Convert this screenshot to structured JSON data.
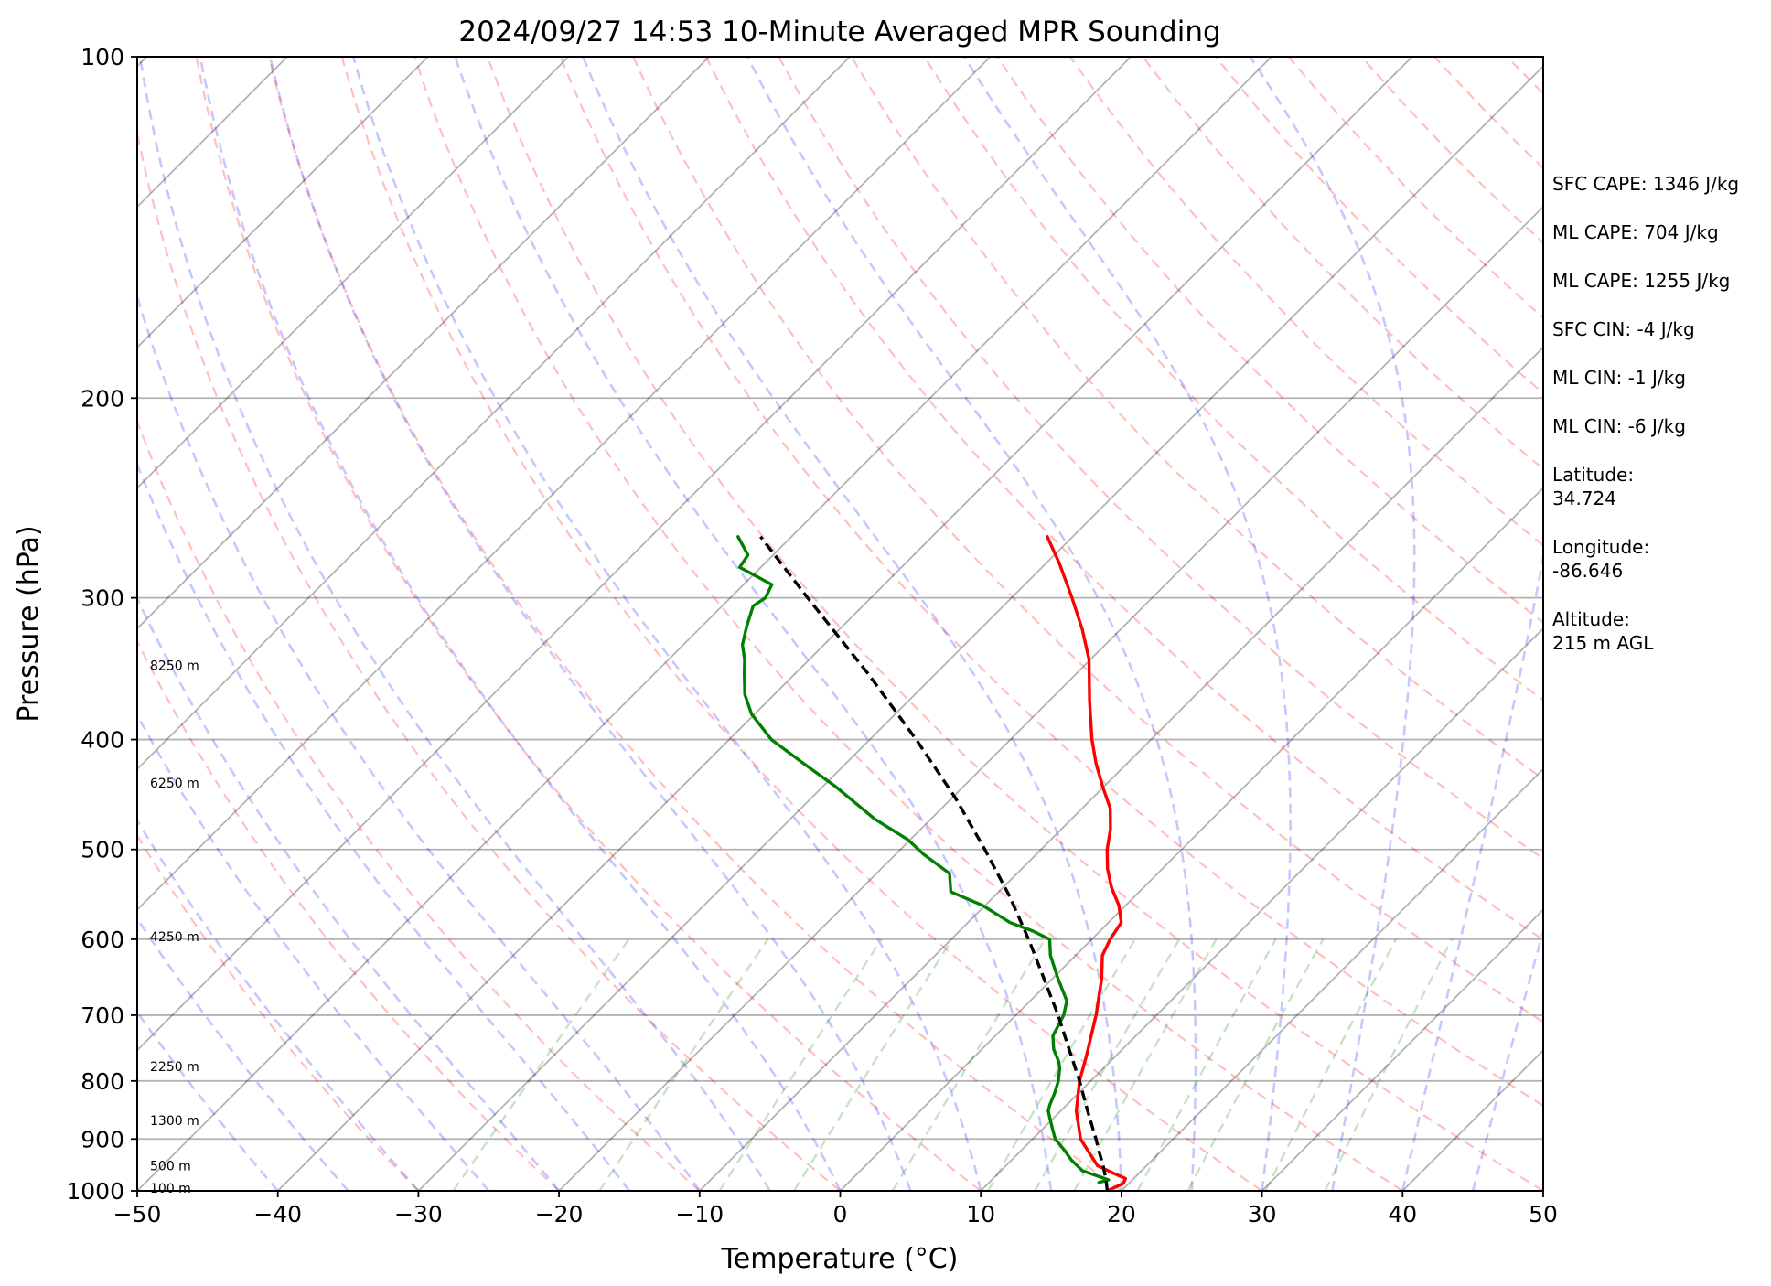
{
  "chart_data": {
    "type": "line",
    "title": "2024/09/27 14:53 10-Minute Averaged MPR Sounding",
    "xlabel": "Temperature (°C)",
    "ylabel": "Pressure (hPa)",
    "xlim": [
      -50,
      50
    ],
    "ylim": [
      1000,
      100
    ],
    "y_scale": "log",
    "skew": true,
    "x_ticks": [
      -50,
      -40,
      -30,
      -20,
      -10,
      0,
      10,
      20,
      30,
      40,
      50
    ],
    "x_tick_labels": [
      "−50",
      "−40",
      "−30",
      "−20",
      "−10",
      "0",
      "10",
      "20",
      "30",
      "40",
      "50"
    ],
    "p_ticks": [
      1000,
      900,
      800,
      700,
      600,
      500,
      400,
      300,
      200,
      100
    ],
    "p_tick_labels": [
      "1000",
      "900",
      "800",
      "700",
      "600",
      "500",
      "400",
      "300",
      "200",
      "100"
    ],
    "height_labels": [
      {
        "p": 344,
        "text": "8250 m"
      },
      {
        "p": 437,
        "text": "6250 m"
      },
      {
        "p": 597,
        "text": "4250 m"
      },
      {
        "p": 777,
        "text": "2250 m"
      },
      {
        "p": 867,
        "text": "1300 m"
      },
      {
        "p": 950,
        "text": "500 m"
      },
      {
        "p": 994,
        "text": "100 m"
      }
    ],
    "series": [
      {
        "color": "#ff0000",
        "style": "solid",
        "points": [
          [
            1000,
            19.0
          ],
          [
            985,
            19.6
          ],
          [
            975,
            19.4
          ],
          [
            965,
            18.2
          ],
          [
            950,
            16.5
          ],
          [
            900,
            13.4
          ],
          [
            850,
            11.1
          ],
          [
            800,
            9.2
          ],
          [
            760,
            7.9
          ],
          [
            700,
            5.7
          ],
          [
            650,
            3.5
          ],
          [
            620,
            1.9
          ],
          [
            600,
            1.3
          ],
          [
            580,
            0.9
          ],
          [
            560,
            -0.5
          ],
          [
            540,
            -2.3
          ],
          [
            520,
            -3.9
          ],
          [
            500,
            -5.3
          ],
          [
            480,
            -6.5
          ],
          [
            460,
            -8.0
          ],
          [
            440,
            -10.1
          ],
          [
            420,
            -12.2
          ],
          [
            400,
            -14.2
          ],
          [
            370,
            -17.1
          ],
          [
            340,
            -20.1
          ],
          [
            320,
            -22.7
          ],
          [
            300,
            -25.7
          ],
          [
            280,
            -29.0
          ],
          [
            265,
            -31.8
          ]
        ]
      },
      {
        "color": "#008000",
        "style": "solid",
        "points": [
          [
            983,
            17.8
          ],
          [
            978,
            18.3
          ],
          [
            970,
            17.2
          ],
          [
            960,
            15.8
          ],
          [
            940,
            14.3
          ],
          [
            920,
            13.0
          ],
          [
            900,
            11.6
          ],
          [
            880,
            10.6
          ],
          [
            860,
            9.6
          ],
          [
            850,
            9.1
          ],
          [
            840,
            8.8
          ],
          [
            820,
            8.3
          ],
          [
            800,
            7.7
          ],
          [
            780,
            6.9
          ],
          [
            770,
            6.4
          ],
          [
            750,
            5.1
          ],
          [
            730,
            4.1
          ],
          [
            700,
            3.4
          ],
          [
            680,
            2.6
          ],
          [
            650,
            0.4
          ],
          [
            620,
            -1.8
          ],
          [
            600,
            -3.0
          ],
          [
            590,
            -4.8
          ],
          [
            580,
            -7.0
          ],
          [
            560,
            -10.2
          ],
          [
            545,
            -13.4
          ],
          [
            525,
            -14.8
          ],
          [
            505,
            -18.0
          ],
          [
            490,
            -20.2
          ],
          [
            470,
            -24.0
          ],
          [
            440,
            -29.1
          ],
          [
            420,
            -33.0
          ],
          [
            400,
            -37.0
          ],
          [
            380,
            -40.2
          ],
          [
            365,
            -42.1
          ],
          [
            350,
            -43.6
          ],
          [
            340,
            -44.6
          ],
          [
            330,
            -45.8
          ],
          [
            318,
            -46.8
          ],
          [
            305,
            -47.8
          ],
          [
            300,
            -47.5
          ],
          [
            292,
            -48.0
          ],
          [
            282,
            -51.5
          ],
          [
            275,
            -51.8
          ],
          [
            265,
            -53.8
          ]
        ]
      },
      {
        "color": "#000000",
        "style": "dashed",
        "points": [
          [
            1000,
            19.0
          ],
          [
            975,
            18.0
          ],
          [
            950,
            16.9
          ],
          [
            925,
            15.7
          ],
          [
            900,
            14.5
          ],
          [
            850,
            11.9
          ],
          [
            800,
            9.2
          ],
          [
            750,
            6.2
          ],
          [
            700,
            3.0
          ],
          [
            650,
            -0.6
          ],
          [
            600,
            -4.5
          ],
          [
            550,
            -8.9
          ],
          [
            500,
            -14.0
          ],
          [
            450,
            -19.8
          ],
          [
            400,
            -26.7
          ],
          [
            350,
            -34.8
          ],
          [
            300,
            -44.5
          ],
          [
            265,
            -52.2
          ]
        ]
      }
    ]
  },
  "stats": [
    "SFC CAPE: 1346 J/kg",
    "ML CAPE: 704 J/kg",
    "ML CAPE: 1255 J/kg",
    "SFC CIN: -4 J/kg",
    "ML CIN: -1 J/kg",
    "ML CIN: -6 J/kg"
  ],
  "location": [
    {
      "label": "Latitude:",
      "value": "34.724"
    },
    {
      "label": "Longitude:",
      "value": "-86.646"
    },
    {
      "label": "Altitude:",
      "value": "215 m AGL"
    }
  ]
}
